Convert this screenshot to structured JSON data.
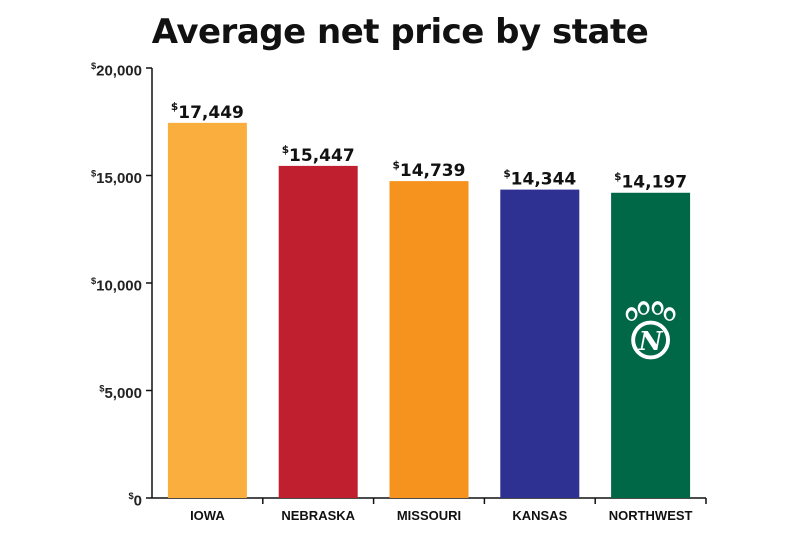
{
  "chart_data": {
    "type": "bar",
    "title": "Average net price by state",
    "xlabel": "",
    "ylabel": "",
    "ylim": [
      0,
      20000
    ],
    "yticks": [
      0,
      5000,
      10000,
      15000,
      20000
    ],
    "ytick_labels": [
      "$0",
      "$5,000",
      "$10,000",
      "$15,000",
      "$20,000"
    ],
    "categories": [
      "IOWA",
      "NEBRASKA",
      "MISSOURI",
      "KANSAS",
      "NORTHWEST"
    ],
    "values": [
      17449,
      15447,
      14739,
      14344,
      14197
    ],
    "value_labels": [
      "$17,449",
      "$15,447",
      "$14,739",
      "$14,344",
      "$14,197"
    ],
    "bar_colors": [
      "#F9AE3D",
      "#C01F2F",
      "#F6921E",
      "#2E3192",
      "#006747"
    ],
    "grid": false,
    "legend": "none",
    "logo": {
      "bar": "NORTHWEST",
      "icon": "bearcat-paw-icon",
      "text": "N"
    }
  }
}
